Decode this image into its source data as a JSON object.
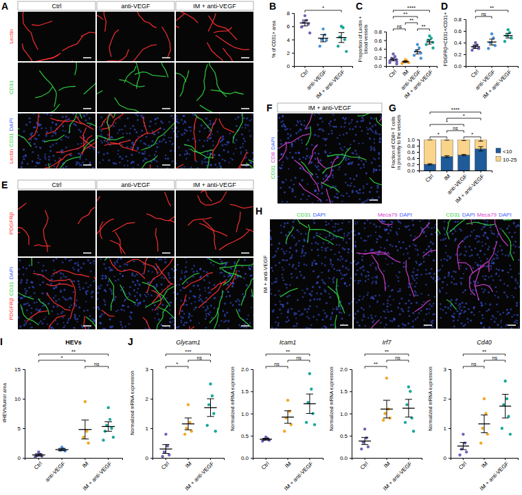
{
  "chart_data": [
    {
      "type": "dot_plot",
      "panel": "B",
      "ylabel": "% of CD31+ area",
      "categories": [
        "Ctrl",
        "anti-VEGF",
        "IM + anti-VEGF"
      ],
      "colors": [
        "#7060b8",
        "#4a90d9",
        "#1aa89a"
      ],
      "values": [
        6.5,
        4.2,
        4.3
      ],
      "errors": [
        0.45,
        0.55,
        0.75
      ],
      "points": [
        [
          7.6,
          6.9,
          6.6,
          6.3,
          5.9,
          5.0
        ],
        [
          5.6,
          4.7,
          4.0,
          3.9,
          3.0
        ],
        [
          6.0,
          5.8,
          4.4,
          4.0,
          3.0,
          2.2
        ]
      ],
      "ylim": [
        0,
        8
      ],
      "yticks": [
        0,
        2,
        4,
        6,
        8
      ],
      "annotations": [
        {
          "from": 0,
          "to": 2,
          "text": "*"
        }
      ]
    },
    {
      "type": "dot_plot",
      "panel": "C",
      "ylabel": "Proportion of Lectin + blood vessels",
      "categories": [
        "Ctrl",
        "IM",
        "anti-VEGF",
        "IM + anti-VEGF"
      ],
      "colors": [
        "#7060b8",
        "#f5a623",
        "#4a90d9",
        "#1aa89a"
      ],
      "values": [
        0.15,
        0.1,
        0.33,
        0.56
      ],
      "errors": [
        0.03,
        0.02,
        0.05,
        0.05
      ],
      "points": [
        [
          0.28,
          0.22,
          0.18,
          0.15,
          0.12,
          0.1,
          0.08,
          0.05
        ],
        [
          0.15,
          0.12,
          0.1,
          0.08,
          0.06
        ],
        [
          0.5,
          0.42,
          0.35,
          0.3,
          0.25,
          0.18
        ],
        [
          0.7,
          0.65,
          0.6,
          0.55,
          0.5,
          0.42
        ]
      ],
      "ylim": [
        0,
        0.8
      ],
      "yticks": [
        {
          "value": 0,
          "label": "0.0"
        },
        0.2,
        0.4,
        0.6,
        0.8
      ],
      "annotations": [
        {
          "from": 0,
          "to": 1,
          "text": "ns"
        },
        {
          "from": 1,
          "to": 2,
          "text": "**"
        },
        {
          "from": 0,
          "to": 2,
          "text": "**"
        },
        {
          "from": 2,
          "to": 3,
          "text": "**"
        },
        {
          "from": 0,
          "to": 3,
          "text": "****"
        }
      ]
    },
    {
      "type": "dot_plot",
      "panel": "D",
      "ylabel": "PDGFRβ+CD31+/CD31+",
      "categories": [
        "Ctrl",
        "anti-VEGF",
        "IM + anti-VEGF"
      ],
      "colors": [
        "#7060b8",
        "#4a90d9",
        "#1aa89a"
      ],
      "values": [
        0.33,
        0.41,
        0.52
      ],
      "errors": [
        0.03,
        0.05,
        0.04
      ],
      "points": [
        [
          0.4,
          0.36,
          0.33,
          0.3,
          0.27
        ],
        [
          0.55,
          0.48,
          0.4,
          0.35,
          0.3
        ],
        [
          0.62,
          0.57,
          0.52,
          0.48,
          0.42
        ]
      ],
      "ylim": [
        0,
        0.8
      ],
      "yticks": [
        {
          "value": 0,
          "label": "0.0"
        },
        0.2,
        0.4,
        0.6,
        0.8
      ],
      "annotations": [
        {
          "from": 0,
          "to": 1,
          "text": "ns"
        },
        {
          "from": 0,
          "to": 2,
          "text": "**"
        }
      ]
    },
    {
      "type": "stacked_bar",
      "panel": "G",
      "ylabel": "Fraction of CD8+ T cells in proximity to the vessels",
      "categories": [
        "Ctrl",
        "IM",
        "anti-VEGF",
        "IM + anti-VEGF"
      ],
      "series": [
        {
          "name": "<10",
          "color": "#1f5b99",
          "values": [
            0.2,
            0.45,
            0.5,
            0.7
          ],
          "errors": [
            0.02,
            0.03,
            0.02,
            0.07
          ]
        },
        {
          "name": "10-25",
          "color": "#f9d48a",
          "values": [
            0.8,
            0.55,
            0.5,
            0.3
          ],
          "errors": [
            0.01,
            0.02,
            0.03,
            0.05
          ]
        }
      ],
      "stacked": true,
      "legend": "right",
      "ylim": [
        0,
        1
      ],
      "yticks": [
        {
          "value": 0,
          "label": "0.0"
        },
        0.2,
        0.4,
        0.6,
        0.8,
        {
          "value": 1,
          "label": "1.0"
        }
      ],
      "annotations": [
        {
          "from": 0,
          "to": 1,
          "text": "*"
        },
        {
          "from": 1,
          "to": 2,
          "text": "ns"
        },
        {
          "from": 2,
          "to": 3,
          "text": "*"
        },
        {
          "from": 0,
          "to": 2,
          "text": "*"
        },
        {
          "from": 1,
          "to": 3,
          "text": "*"
        },
        {
          "from": 0,
          "to": 3,
          "text": "****"
        }
      ]
    },
    {
      "type": "dot_plot",
      "panel": "I",
      "title": "HEVs",
      "ylabel": "#HEVs/tumor area",
      "categories": [
        "Ctrl",
        "anti-VEGF",
        "IM",
        "IM + anti-VEGF"
      ],
      "colors": [
        "#7060b8",
        "#4a90d9",
        "#f5a623",
        "#1aa89a"
      ],
      "values": [
        0.5,
        1.4,
        4.8,
        5.3
      ],
      "errors": [
        0.2,
        0.2,
        1.6,
        0.8
      ],
      "points": [
        [
          1.0,
          0.6,
          0.4,
          0.3,
          0.2
        ],
        [
          1.8,
          1.5,
          1.3,
          1.2
        ],
        [
          9.5,
          4.5,
          3.5,
          2.5
        ],
        [
          8.5,
          6.5,
          5.5,
          5.0,
          4.5,
          3.5,
          3.0
        ]
      ],
      "ylim": [
        0,
        15
      ],
      "yticks": [
        0,
        5,
        10,
        15
      ],
      "annotations": [
        {
          "from": 0,
          "to": 2,
          "text": "*"
        },
        {
          "from": 2,
          "to": 3,
          "text": "ns"
        },
        {
          "from": 0,
          "to": 3,
          "text": "**"
        }
      ]
    },
    {
      "type": "dot_plot",
      "panel": "J",
      "title": "Glycam1",
      "ylabel": "Normalized mRNA expression",
      "categories": [
        "Ctrl",
        "IM",
        "IM + anti-VEGF"
      ],
      "colors": [
        "#7060b8",
        "#f5a623",
        "#1aa89a"
      ],
      "values": [
        0.3,
        1.15,
        1.7
      ],
      "errors": [
        0.15,
        0.2,
        0.3
      ],
      "points": [
        [
          0.8,
          0.4,
          0.2,
          0.1,
          0.05
        ],
        [
          1.8,
          1.2,
          1.0,
          0.9,
          0.8
        ],
        [
          2.5,
          2.1,
          1.8,
          1.5,
          1.1,
          0.9
        ]
      ],
      "ylim": [
        0,
        3
      ],
      "yticks": [
        0,
        1,
        2,
        3
      ],
      "annotations": [
        {
          "from": 0,
          "to": 1,
          "text": "*"
        },
        {
          "from": 1,
          "to": 2,
          "text": "ns"
        },
        {
          "from": 0,
          "to": 2,
          "text": "***"
        }
      ]
    },
    {
      "type": "dot_plot",
      "title": "Icam1",
      "ylabel": "Normalized mRNA expression",
      "categories": [
        "Ctrl",
        "IM",
        "IM + anti-VEGF"
      ],
      "colors": [
        "#7060b8",
        "#f5a623",
        "#1aa89a"
      ],
      "values": [
        0.42,
        0.92,
        1.22
      ],
      "errors": [
        0.02,
        0.14,
        0.22
      ],
      "points": [
        [
          0.47,
          0.44,
          0.42,
          0.4,
          0.38
        ],
        [
          1.3,
          1.05,
          0.9,
          0.75,
          0.6
        ],
        [
          1.9,
          1.55,
          1.25,
          1.0,
          0.8,
          0.75
        ]
      ],
      "ylim": [
        0,
        2
      ],
      "yticks": [
        {
          "value": 0,
          "label": "0.0"
        },
        0.5,
        {
          "value": 1,
          "label": "1.0"
        },
        1.5,
        {
          "value": 2,
          "label": "2.0"
        }
      ],
      "annotations": [
        {
          "from": 0,
          "to": 1,
          "text": "ns"
        },
        {
          "from": 1,
          "to": 2,
          "text": "ns"
        },
        {
          "from": 0,
          "to": 2,
          "text": "**"
        }
      ]
    },
    {
      "type": "dot_plot",
      "title": "Irf7",
      "ylabel": "Normalized mRNA expression",
      "categories": [
        "Ctrl",
        "IM",
        "IM + anti-VEGF"
      ],
      "colors": [
        "#7060b8",
        "#f5a623",
        "#1aa89a"
      ],
      "values": [
        0.38,
        1.1,
        1.12
      ],
      "errors": [
        0.08,
        0.2,
        0.2
      ],
      "points": [
        [
          0.65,
          0.45,
          0.35,
          0.25,
          0.2
        ],
        [
          1.8,
          1.1,
          1.0,
          0.9,
          0.85
        ],
        [
          1.6,
          1.5,
          1.2,
          0.9,
          0.8,
          0.6
        ]
      ],
      "ylim": [
        0,
        2
      ],
      "yticks": [
        {
          "value": 0,
          "label": "0.0"
        },
        0.5,
        {
          "value": 1,
          "label": "1.0"
        },
        1.5,
        {
          "value": 2,
          "label": "2.0"
        }
      ],
      "annotations": [
        {
          "from": 0,
          "to": 1,
          "text": "**"
        },
        {
          "from": 1,
          "to": 2,
          "text": "ns"
        },
        {
          "from": 0,
          "to": 2,
          "text": "**"
        }
      ]
    },
    {
      "type": "dot_plot",
      "title": "Cd40",
      "ylabel": "Normalized mRNA expression",
      "categories": [
        "Ctrl",
        "IM",
        "IM + anti-VEGF"
      ],
      "colors": [
        "#7060b8",
        "#f5a623",
        "#1aa89a"
      ],
      "values": [
        0.4,
        1.15,
        1.75
      ],
      "errors": [
        0.12,
        0.3,
        0.4
      ],
      "points": [
        [
          0.8,
          0.5,
          0.3,
          0.2,
          0.1
        ],
        [
          2.0,
          1.5,
          1.0,
          0.8,
          0.5
        ],
        [
          2.6,
          2.0,
          1.8,
          1.4,
          1.0,
          0.8
        ]
      ],
      "ylim": [
        0,
        3
      ],
      "yticks": [
        0,
        1,
        2,
        3
      ],
      "annotations": [
        {
          "from": 0,
          "to": 1,
          "text": "ns"
        },
        {
          "from": 1,
          "to": 2,
          "text": "ns"
        },
        {
          "from": 0,
          "to": 2,
          "text": "**"
        }
      ]
    }
  ],
  "image_panels": [
    {
      "panel": "A",
      "columns": [
        "Ctrl",
        "anti-VEGF",
        "IM + anti-VEGF"
      ],
      "rows": [
        [
          {
            "text": "Lectin",
            "color": "#ff3030"
          }
        ],
        [
          {
            "text": "CD31",
            "color": "#30d040"
          }
        ],
        [
          {
            "text": "Lectin",
            "color": "#ff3030"
          },
          {
            "text": "CD31",
            "color": "#30d040"
          },
          {
            "text": "DAPI",
            "color": "#4060ff"
          }
        ]
      ]
    },
    {
      "panel": "E",
      "columns": [
        "Ctrl",
        "anti-VEGF",
        "IM + anti-VEGF"
      ],
      "rows": [
        [
          {
            "text": "PDGFRβ",
            "color": "#ff3030"
          }
        ],
        [
          {
            "text": "PDGFRβ",
            "color": "#ff3030"
          },
          {
            "text": "CD31",
            "color": "#30d040"
          },
          {
            "text": "DAPI",
            "color": "#4060ff"
          }
        ]
      ]
    },
    {
      "panel": "F",
      "columns": [
        "IM + anti-VEGF"
      ],
      "rows": [
        [
          {
            "text": "CD31",
            "color": "#30d040"
          },
          {
            "text": "CD8",
            "color": "#d040d0"
          },
          {
            "text": "DAPI",
            "color": "#4060ff"
          }
        ]
      ]
    },
    {
      "panel": "H",
      "row_label": "IM + anti-VEGF",
      "columns": [
        [
          {
            "text": "CD31",
            "color": "#30d040"
          },
          {
            "text": "DAPI",
            "color": "#4060ff"
          }
        ],
        [
          {
            "text": "Meca79",
            "color": "#d040d0"
          },
          {
            "text": "DAPI",
            "color": "#4060ff"
          }
        ],
        [
          {
            "text": "CD31",
            "color": "#30d040"
          },
          {
            "text": "DAPI",
            "color": "#4060ff"
          },
          {
            "text": "Meca79",
            "color": "#d040d0"
          },
          {
            "text": "DAPI",
            "color": "#4060ff"
          }
        ]
      ]
    }
  ]
}
